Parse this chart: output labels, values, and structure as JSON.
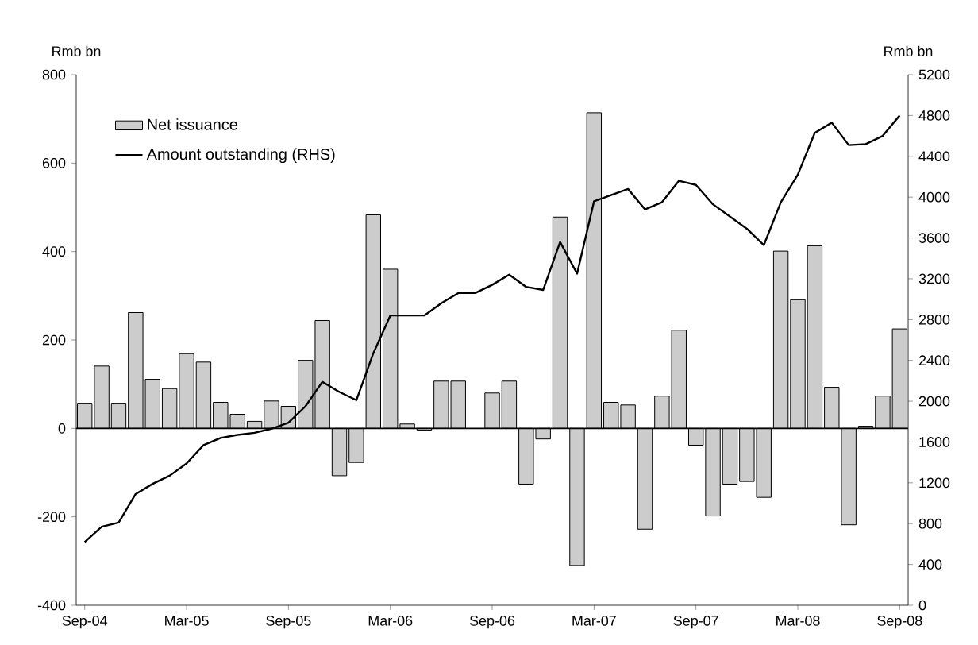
{
  "chart_data": {
    "type": "bar",
    "ylabel": "Rmb bn",
    "y2label": "Rmb bn",
    "categories": [
      "Sep-04",
      null,
      null,
      null,
      null,
      null,
      "Mar-05",
      null,
      null,
      null,
      null,
      null,
      "Sep-05",
      null,
      null,
      null,
      null,
      null,
      "Mar-06",
      null,
      null,
      null,
      null,
      null,
      "Sep-06",
      null,
      null,
      null,
      null,
      null,
      "Mar-07",
      null,
      null,
      null,
      null,
      null,
      "Sep-07",
      null,
      null,
      null,
      null,
      null,
      "Mar-08",
      null,
      null,
      null,
      null,
      null,
      "Sep-08"
    ],
    "series": [
      {
        "name": "Net issuance",
        "color": "#cccccc",
        "values": [
          57,
          141,
          57,
          262,
          111,
          90,
          169,
          150,
          59,
          32,
          16,
          62,
          50,
          154,
          244,
          -107,
          -77,
          483,
          360,
          10,
          -4,
          107,
          107,
          null,
          80,
          107,
          -126,
          -24,
          478,
          -310,
          714,
          59,
          53,
          -228,
          73,
          222,
          -38,
          -198,
          -126,
          -120,
          -156,
          401,
          291,
          413,
          93,
          -218,
          5,
          73,
          225
        ]
      },
      {
        "name": "Amount outstanding (RHS)",
        "type": "line",
        "axis": "y2",
        "color": "#000000",
        "values": [
          620,
          770,
          810,
          1090,
          1190,
          1270,
          1390,
          1570,
          1640,
          1670,
          1690,
          1730,
          1790,
          1950,
          2190,
          2090,
          2010,
          2470,
          2840,
          2840,
          2840,
          2960,
          3060,
          3060,
          3140,
          3240,
          3120,
          3090,
          3560,
          3250,
          3960,
          4020,
          4080,
          3880,
          3950,
          4160,
          4120,
          3930,
          3810,
          3690,
          3530,
          3950,
          4220,
          4630,
          4730,
          4510,
          4520,
          4600,
          4800
        ]
      }
    ],
    "ylim": [
      -400,
      800
    ],
    "yticks": [
      -400,
      -200,
      0,
      200,
      400,
      600,
      800
    ],
    "y2lim": [
      0,
      5200
    ],
    "y2ticks": [
      0,
      400,
      800,
      1200,
      1600,
      2000,
      2400,
      2800,
      3200,
      3600,
      4000,
      4400,
      4800,
      5200
    ],
    "ref_lines": [
      {
        "axis": "y",
        "value": 0
      }
    ],
    "legend": "top left",
    "grid": false
  }
}
